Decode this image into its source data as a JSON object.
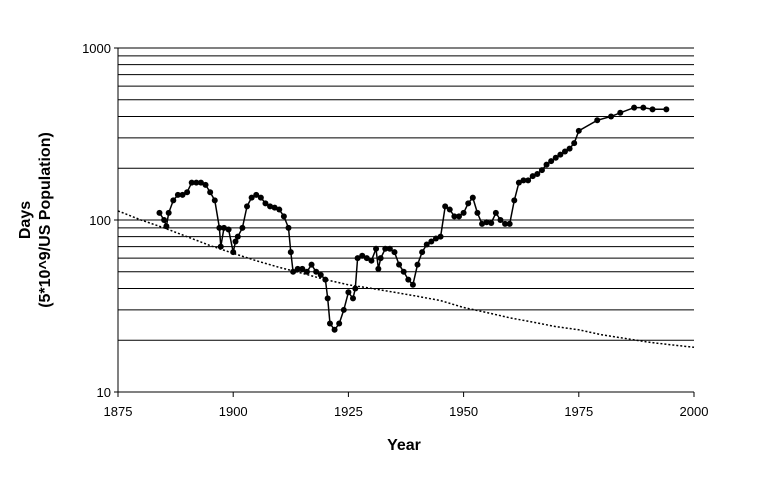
{
  "chart_data": {
    "type": "line",
    "y_label": [
      "Days",
      "(5*10^9/US Population)"
    ],
    "x_label": "Year",
    "xlim": [
      1875,
      2000
    ],
    "xticks": [
      1875,
      1900,
      1925,
      1950,
      1975,
      2000
    ],
    "ylim": [
      10,
      1000
    ],
    "yticks": [
      10,
      100,
      1000
    ],
    "log_y": true,
    "ygrid": [
      20,
      30,
      40,
      50,
      60,
      70,
      80,
      90,
      100,
      200,
      300,
      400,
      500,
      600,
      700,
      800,
      900,
      1000
    ],
    "series": [
      {
        "color": "#000000",
        "markers": true,
        "dashed": false,
        "x": [
          1884,
          1885,
          1885.5,
          1886,
          1887,
          1888,
          1889,
          1890,
          1891,
          1892,
          1893,
          1894,
          1895,
          1896,
          1897,
          1897.3,
          1898,
          1899,
          1900,
          1900.5,
          1901,
          1902,
          1903,
          1904,
          1905,
          1906,
          1907,
          1908,
          1909,
          1910,
          1911,
          1912,
          1912.5,
          1913,
          1914,
          1915,
          1916,
          1917,
          1918,
          1919,
          1920,
          1920.5,
          1921,
          1922,
          1923,
          1924,
          1925,
          1926,
          1926.5,
          1927,
          1928,
          1929,
          1930,
          1931,
          1931.5,
          1932,
          1933,
          1934,
          1935,
          1936,
          1937,
          1938,
          1939,
          1940,
          1941,
          1942,
          1943,
          1944,
          1945,
          1946,
          1947,
          1948,
          1949,
          1950,
          1951,
          1952,
          1953,
          1954,
          1955,
          1956,
          1957,
          1958,
          1959,
          1960,
          1961,
          1962,
          1963,
          1964,
          1965,
          1966,
          1967,
          1968,
          1969,
          1970,
          1971,
          1972,
          1973,
          1974,
          1975,
          1979,
          1982,
          1984,
          1987,
          1989,
          1991,
          1994
        ],
        "values": [
          110,
          100,
          92,
          110,
          130,
          140,
          140,
          145,
          165,
          165,
          165,
          160,
          145,
          130,
          90,
          70,
          90,
          88,
          65,
          75,
          80,
          90,
          120,
          135,
          140,
          135,
          125,
          120,
          118,
          115,
          105,
          90,
          65,
          50,
          52,
          52,
          50,
          55,
          50,
          48,
          45,
          35,
          25,
          23,
          25,
          30,
          38,
          35,
          40,
          60,
          62,
          60,
          58,
          68,
          52,
          60,
          68,
          68,
          65,
          55,
          50,
          45,
          42,
          55,
          65,
          72,
          75,
          78,
          80,
          120,
          115,
          105,
          105,
          110,
          125,
          135,
          110,
          95,
          97,
          96,
          110,
          100,
          95,
          95,
          130,
          165,
          170,
          170,
          180,
          185,
          195,
          210,
          220,
          230,
          240,
          250,
          260,
          280,
          330,
          380,
          400,
          420,
          450,
          450,
          440,
          440
        ]
      },
      {
        "color": "#000000",
        "markers": false,
        "dashed": true,
        "x": [
          1875,
          1880,
          1885,
          1890,
          1895,
          1900,
          1905,
          1910,
          1915,
          1920,
          1925,
          1930,
          1935,
          1940,
          1945,
          1950,
          1955,
          1960,
          1965,
          1970,
          1975,
          1980,
          1985,
          1990,
          1995,
          2000
        ],
        "values": [
          113,
          100,
          90,
          80,
          71,
          64,
          58,
          53,
          49,
          45,
          42,
          40,
          38,
          36,
          34,
          31,
          29,
          27,
          25.5,
          24,
          23,
          21.5,
          20.5,
          19.5,
          18.8,
          18.2
        ]
      }
    ]
  }
}
